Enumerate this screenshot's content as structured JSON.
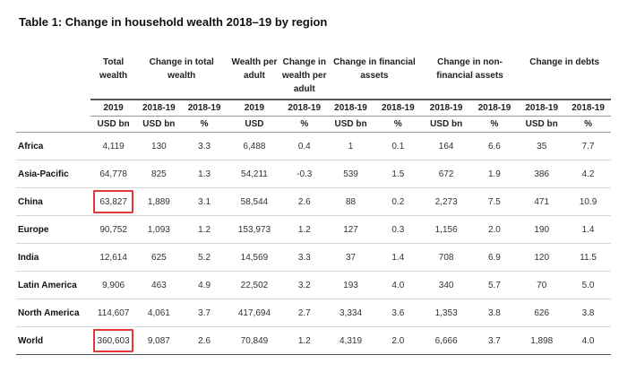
{
  "title": "Table 1: Change in household wealth 2018–19  by region",
  "headers": [
    {
      "group": "",
      "line": ""
    },
    {
      "group": "total_wealth",
      "line": "Total wealth"
    },
    {
      "group": "change_total",
      "line": "Change in total wealth"
    },
    {
      "group": "wealth_per_adult",
      "line": "Wealth per adult"
    },
    {
      "group": "change_per_adult",
      "line": "Change in wealth per adult"
    },
    {
      "group": "change_financial",
      "line": "Change in financial assets"
    },
    {
      "group": "change_nonfinancial",
      "line": "Change in non-financial assets"
    },
    {
      "group": "change_debts",
      "line": "Change in debts"
    }
  ],
  "header_labels": {
    "total_wealth": "Total wealth",
    "change_total": "Change in total wealth",
    "wealth_per_adult": "Wealth per adult",
    "change_per_adult": "Change in wealth per adult",
    "change_financial": "Change in financial assets",
    "change_nonfinancial": "Change in non-financial assets",
    "change_debts": "Change in debts"
  },
  "years": [
    "2019",
    "2018-19",
    "2018-19",
    "2019",
    "2018-19",
    "2018-19",
    "2018-19",
    "2018-19",
    "2018-19",
    "2018-19",
    "2018-19"
  ],
  "units": [
    "USD bn",
    "USD bn",
    "%",
    "USD",
    "%",
    "USD bn",
    "%",
    "USD bn",
    "%",
    "USD bn",
    "%"
  ],
  "rows": [
    {
      "region": "Africa",
      "values": [
        "4,119",
        "130",
        "3.3",
        "6,488",
        "0.4",
        "1",
        "0.1",
        "164",
        "6.6",
        "35",
        "7.7"
      ]
    },
    {
      "region": "Asia-Pacific",
      "values": [
        "64,778",
        "825",
        "1.3",
        "54,211",
        "-0.3",
        "539",
        "1.5",
        "672",
        "1.9",
        "386",
        "4.2"
      ]
    },
    {
      "region": "China",
      "values": [
        "63,827",
        "1,889",
        "3.1",
        "58,544",
        "2.6",
        "88",
        "0.2",
        "2,273",
        "7.5",
        "471",
        "10.9"
      ]
    },
    {
      "region": "Europe",
      "values": [
        "90,752",
        "1,093",
        "1.2",
        "153,973",
        "1.2",
        "127",
        "0.3",
        "1,156",
        "2.0",
        "190",
        "1.4"
      ]
    },
    {
      "region": "India",
      "values": [
        "12,614",
        "625",
        "5.2",
        "14,569",
        "3.3",
        "37",
        "1.4",
        "708",
        "6.9",
        "120",
        "11.5"
      ]
    },
    {
      "region": "Latin America",
      "values": [
        "9,906",
        "463",
        "4.9",
        "22,502",
        "3.2",
        "193",
        "4.0",
        "340",
        "5.7",
        "70",
        "5.0"
      ]
    },
    {
      "region": "North America",
      "values": [
        "114,607",
        "4,061",
        "3.7",
        "417,694",
        "2.7",
        "3,334",
        "3.6",
        "1,353",
        "3.8",
        "626",
        "3.8"
      ]
    },
    {
      "region": "World",
      "values": [
        "360,603",
        "9,087",
        "2.6",
        "70,849",
        "1.2",
        "4,319",
        "2.0",
        "6,666",
        "3.7",
        "1,898",
        "4.0"
      ]
    }
  ],
  "highlight_color": "#e03b3b",
  "highlighted_cells": [
    "China / Total wealth 2019",
    "World / Total wealth 2019"
  ]
}
